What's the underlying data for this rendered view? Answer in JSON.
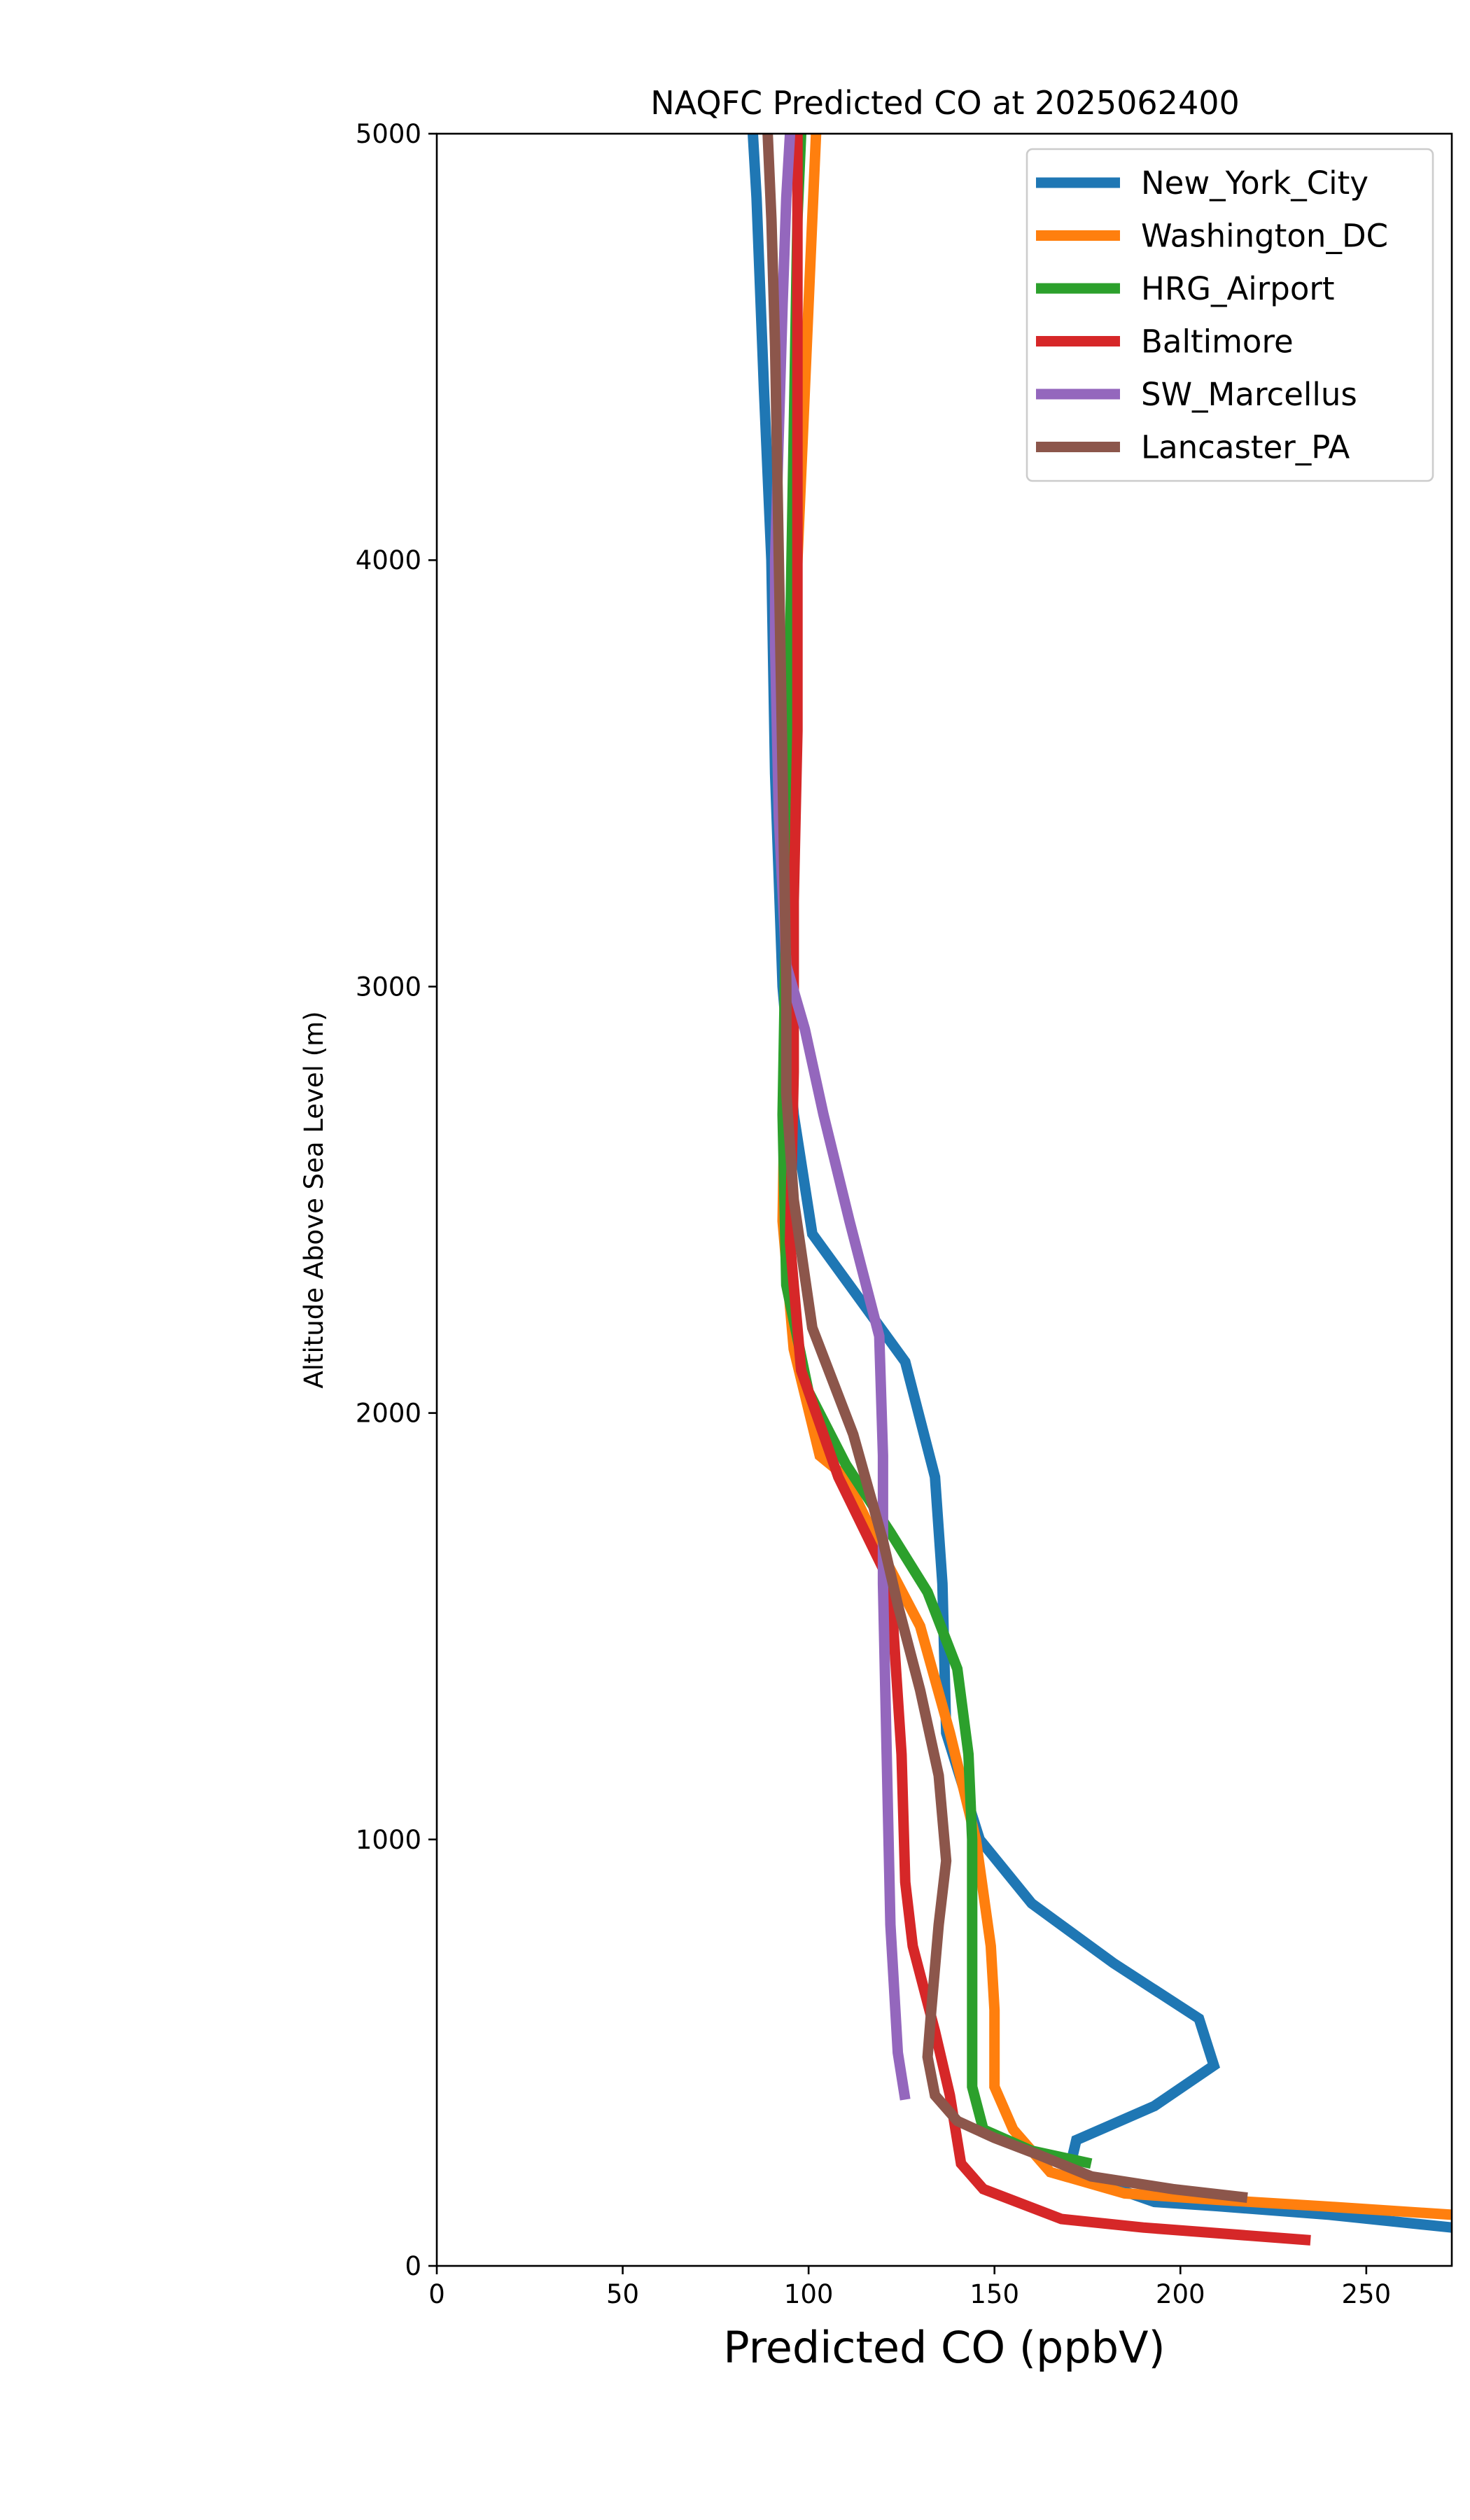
{
  "chart_data": {
    "type": "line",
    "title": "NAQFC Predicted CO at 2025062400",
    "xlabel": "Predicted CO (ppbV)",
    "ylabel": "Altitude Above Sea Level (m)",
    "xlim": [
      0,
      273
    ],
    "ylim": [
      0,
      5000
    ],
    "xticks": [
      "0",
      "50",
      "100",
      "150",
      "200",
      "250"
    ],
    "yticks": [
      "0",
      "1000",
      "2000",
      "3000",
      "4000",
      "5000"
    ],
    "grid": false,
    "legend_position": "top-right",
    "series": [
      {
        "name": "New_York_City",
        "color": "#1f77b4",
        "x": [
          273,
          240,
          210,
          193,
          170,
          172,
          193,
          209,
          205,
          182,
          160,
          146,
          137,
          136,
          134,
          126,
          101,
          96,
          93,
          91,
          90,
          88,
          86,
          85
        ],
        "y": [
          90,
          120,
          140,
          150,
          220,
          295,
          375,
          470,
          580,
          710,
          850,
          1000,
          1250,
          1600,
          1850,
          2120,
          2420,
          2700,
          3000,
          3500,
          4000,
          4400,
          4850,
          5000
        ]
      },
      {
        "name": "Washington_DC",
        "color": "#ff7f0e",
        "x": [
          273,
          238,
          210,
          185,
          165,
          155,
          150,
          150,
          149,
          145,
          138,
          130,
          121,
          110,
          103,
          96,
          93,
          94,
          95,
          97,
          99,
          101,
          102
        ],
        "y": [
          120,
          140,
          155,
          170,
          220,
          320,
          420,
          600,
          750,
          1000,
          1250,
          1500,
          1650,
          1850,
          1900,
          2150,
          2450,
          3000,
          3500,
          4000,
          4400,
          4800,
          5000
        ]
      },
      {
        "name": "HRG_Airport",
        "color": "#2ca02c",
        "x": [
          176,
          160,
          147,
          144,
          144,
          144,
          143,
          140,
          132,
          122,
          110,
          100,
          94,
          93,
          94,
          95,
          96,
          97,
          98
        ],
        "y": [
          240,
          270,
          320,
          420,
          700,
          1000,
          1200,
          1400,
          1580,
          1720,
          1880,
          2050,
          2300,
          2700,
          3200,
          3800,
          4300,
          4800,
          5000
        ]
      },
      {
        "name": "Baltimore",
        "color": "#d62728",
        "x": [
          235,
          190,
          168,
          147,
          141,
          138,
          134,
          128,
          126,
          125,
          122,
          108,
          98,
          95,
          96,
          96,
          97,
          97,
          97,
          97
        ],
        "y": [
          60,
          90,
          110,
          180,
          240,
          400,
          550,
          750,
          900,
          1200,
          1600,
          1850,
          2100,
          2400,
          2800,
          3200,
          3600,
          4000,
          4500,
          5000
        ]
      },
      {
        "name": "SW_Marcellus",
        "color": "#9467bd",
        "x": [
          126,
          124,
          123,
          122,
          121,
          120,
          120,
          119,
          111,
          104,
          99,
          94,
          92,
          91,
          91,
          92,
          93,
          94,
          95
        ],
        "y": [
          390,
          500,
          650,
          800,
          1200,
          1600,
          1900,
          2180,
          2450,
          2700,
          2900,
          3050,
          3400,
          3800,
          4000,
          4300,
          4600,
          4850,
          5000
        ]
      },
      {
        "name": "Lancaster_PA",
        "color": "#8c564b",
        "x": [
          218,
          198,
          176,
          162,
          150,
          140,
          134,
          132,
          133,
          135,
          137,
          135,
          130,
          124,
          120,
          112,
          101,
          96,
          94,
          94,
          93,
          92,
          91,
          90,
          89
        ],
        "y": [
          160,
          180,
          210,
          260,
          300,
          340,
          400,
          490,
          600,
          800,
          950,
          1150,
          1350,
          1550,
          1700,
          1950,
          2200,
          2500,
          2750,
          3000,
          3500,
          4000,
          4500,
          4800,
          5000
        ]
      }
    ]
  }
}
